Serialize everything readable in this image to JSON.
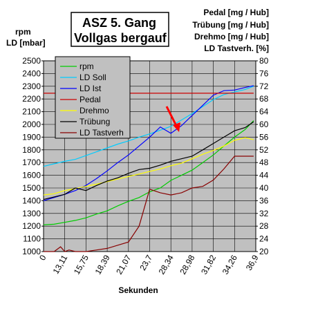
{
  "chart_data": {
    "type": "line",
    "title_lines": [
      "ASZ  5. Gang",
      "Vollgas bergauf"
    ],
    "left_axis_label_lines": [
      "rpm",
      "LD [mbar]"
    ],
    "right_axis_label_lines": [
      "Pedal  [mg / Hub]",
      "Trübung [mg / Hub]",
      "Drehmo [mg / Hub]",
      "LD Tastverh. [%]"
    ],
    "xlabel": "Sekunden",
    "x_tick_labels": [
      "0",
      "13,11",
      "15,75",
      "18,39",
      "21,07",
      "23,7",
      "28,34",
      "28,98",
      "31,82",
      "34,26",
      "36,9"
    ],
    "ylim_left": [
      1000,
      2500
    ],
    "yticks_left": [
      1000,
      1100,
      1200,
      1300,
      1400,
      1500,
      1600,
      1700,
      1800,
      1900,
      2000,
      2100,
      2200,
      2300,
      2400,
      2500
    ],
    "ylim_right": [
      20,
      80
    ],
    "yticks_right": [
      20,
      24,
      28,
      32,
      36,
      40,
      44,
      48,
      52,
      56,
      60,
      64,
      68,
      72,
      76,
      80
    ],
    "x_range": [
      0,
      10
    ],
    "grid": true,
    "legend_position": "top-left",
    "series": [
      {
        "name": "rpm",
        "color": "#00cc00",
        "axis": "left",
        "x": [
          0,
          0.5,
          1,
          1.5,
          2,
          2.5,
          3,
          3.5,
          4,
          4.5,
          5,
          5.5,
          6,
          6.5,
          7,
          7.5,
          8,
          8.5,
          9,
          9.5,
          9.9
        ],
        "y": [
          1210,
          1215,
          1230,
          1245,
          1265,
          1295,
          1320,
          1360,
          1395,
          1425,
          1470,
          1500,
          1560,
          1600,
          1640,
          1700,
          1760,
          1830,
          1900,
          1960,
          2030
        ]
      },
      {
        "name": "LD Soll",
        "color": "#00ccff",
        "axis": "left",
        "x": [
          0,
          0.5,
          1,
          1.5,
          2,
          2.5,
          3,
          3.5,
          4,
          4.5,
          5,
          5.5,
          6,
          6.5,
          7,
          7.5,
          8,
          8.5,
          9,
          9.5,
          9.9
        ],
        "y": [
          1670,
          1690,
          1710,
          1725,
          1755,
          1785,
          1815,
          1845,
          1870,
          1900,
          1925,
          1955,
          1985,
          2035,
          2085,
          2140,
          2195,
          2235,
          2255,
          2275,
          2300
        ]
      },
      {
        "name": "LD Ist",
        "color": "#0000ff",
        "axis": "left",
        "x": [
          0,
          0.5,
          1,
          1.5,
          2,
          2.5,
          3,
          3.5,
          4,
          4.5,
          5,
          5.5,
          6,
          6.5,
          7,
          7.5,
          8,
          8.5,
          9,
          9.5,
          9.9
        ],
        "y": [
          1400,
          1425,
          1450,
          1480,
          1520,
          1575,
          1635,
          1700,
          1760,
          1830,
          1900,
          1980,
          1930,
          1990,
          2070,
          2150,
          2230,
          2265,
          2270,
          2290,
          2305
        ]
      },
      {
        "name": "Pedal",
        "color": "#cc0000",
        "axis": "right",
        "x": [
          0,
          9.9
        ],
        "y": [
          69.8,
          69.8
        ]
      },
      {
        "name": "Drehmo",
        "color": "#ffff00",
        "axis": "right",
        "x": [
          0,
          0.5,
          1,
          1.5,
          2,
          2.5,
          3,
          3.5,
          4,
          4.5,
          5,
          5.5,
          6,
          6.5,
          7,
          7.5,
          8,
          8.5,
          9,
          9.5,
          9.9
        ],
        "y": [
          37.8,
          38.2,
          39.2,
          39.8,
          40.5,
          41.2,
          42.0,
          42.8,
          43.6,
          44.4,
          45.2,
          46.0,
          47.0,
          47.8,
          49.2,
          50.6,
          51.8,
          53.2,
          55.0,
          55.8,
          55.2
        ]
      },
      {
        "name": "Trübung",
        "color": "#000000",
        "axis": "right",
        "x": [
          0,
          0.5,
          1,
          1.5,
          2,
          2.5,
          3,
          3.5,
          4,
          4.5,
          5,
          5.5,
          6,
          6.5,
          7,
          7.5,
          8,
          8.5,
          9,
          9.5,
          9.9
        ],
        "y": [
          36.4,
          37.2,
          38.0,
          40.0,
          39.2,
          40.8,
          42.2,
          43.2,
          44.6,
          45.8,
          46.2,
          47.2,
          48.4,
          49.2,
          50.0,
          52.0,
          54.0,
          56.0,
          58.0,
          59.0,
          60.8
        ]
      },
      {
        "name": "LD Tastverh",
        "color": "#880000",
        "axis": "right",
        "x": [
          0,
          0.5,
          0.8,
          1,
          1.2,
          1.5,
          2,
          2.5,
          3,
          3.5,
          4,
          4.5,
          5,
          5.5,
          6,
          6.5,
          7,
          7.5,
          8,
          8.5,
          9,
          9.5,
          9.9
        ],
        "y": [
          20.0,
          20.0,
          21.5,
          20.0,
          20.5,
          20.0,
          20.0,
          20.5,
          21.0,
          22.0,
          23.0,
          28.0,
          39.6,
          38.5,
          37.8,
          38.5,
          40.0,
          40.5,
          42.5,
          46.0,
          50.0,
          50.0,
          50.0
        ]
      }
    ],
    "annotation": {
      "type": "arrow",
      "color": "#ff0000",
      "points_to_series": "LD Ist"
    }
  }
}
